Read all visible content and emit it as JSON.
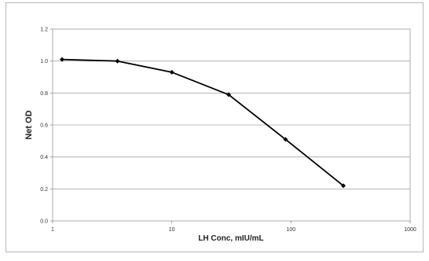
{
  "chart_data": {
    "type": "line",
    "title": "",
    "xlabel": "LH Conc, mIU/mL",
    "ylabel": "Net OD",
    "x_scale": "log",
    "xlim": [
      1,
      1000
    ],
    "ylim": [
      0.0,
      1.2
    ],
    "x_ticks": [
      1,
      10,
      100,
      1000
    ],
    "x_tick_labels": [
      "1",
      "10",
      "100",
      "1000"
    ],
    "y_ticks": [
      0.0,
      0.2,
      0.4,
      0.6,
      0.8,
      1.0,
      1.2
    ],
    "y_tick_labels": [
      "0.0",
      "0.2",
      "0.4",
      "0.6",
      "0.8",
      "1.0",
      "1.2"
    ],
    "grid": "horizontal",
    "legend": "none",
    "series": [
      {
        "x": [
          1.2,
          3.5,
          10,
          30,
          90,
          275
        ],
        "y": [
          1.01,
          1.0,
          0.93,
          0.79,
          0.51,
          0.22
        ],
        "color": "#000000",
        "marker": "diamond"
      }
    ]
  }
}
